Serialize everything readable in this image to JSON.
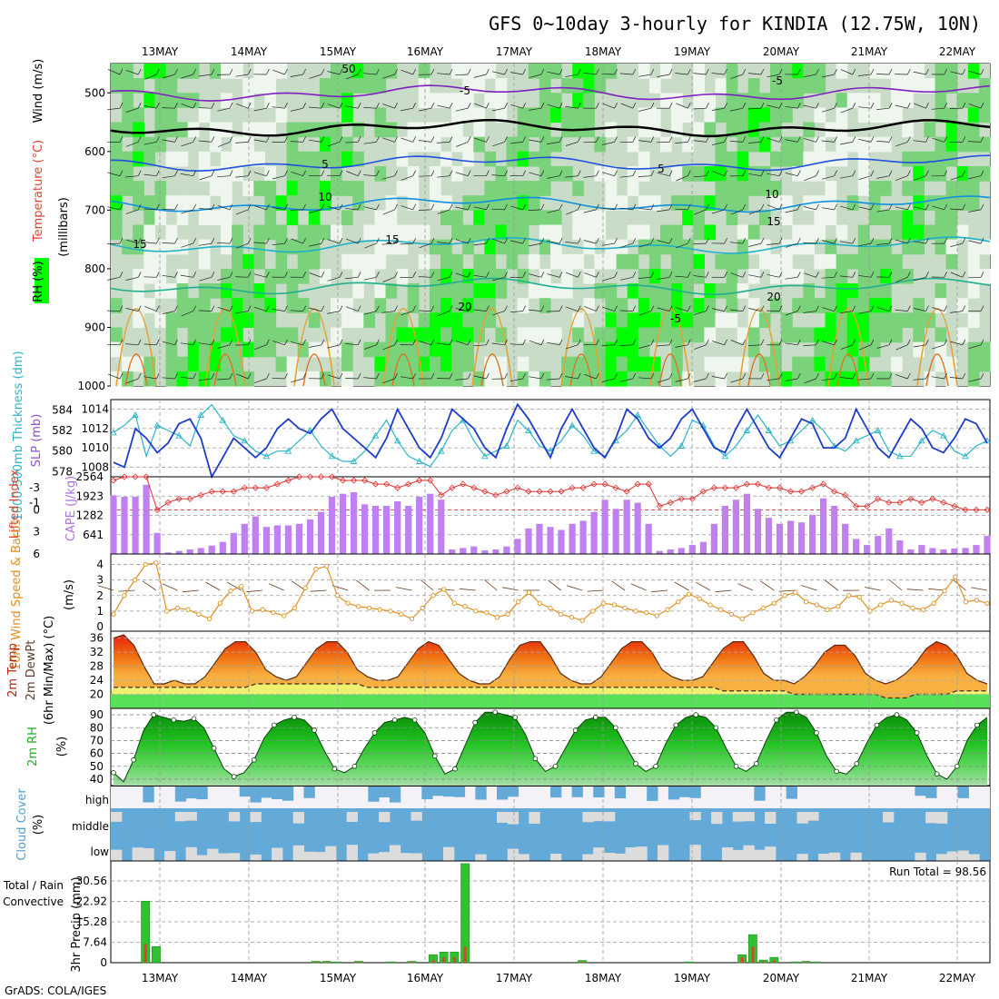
{
  "title": "GFS 0~10day 3-hourly for KINDIA (12.75W, 10N)",
  "footer": "GrADS: COLA/IGES",
  "run_total_label": "Run Total = 98.56",
  "colors": {
    "rh_green": "#00ff00",
    "rh_mid": "#7ad27a",
    "rh_light": "#c8dcc8",
    "rh_pale": "#eef6ee",
    "slp": "#1e3cc8",
    "thickness": "#2ab4c8",
    "cape": "#c080f0",
    "lifted": "#e03030",
    "wind10": "#e09020",
    "temp_red": "#e82010",
    "temp_orange": "#f07010",
    "temp_amber": "#f8b040",
    "dew_yellow": "#f0f070",
    "dew_green": "#58e058",
    "cloud": "#64aad8",
    "cloud_bg": "#dcdcdc",
    "precip_total": "#30c030",
    "precip_conv": "#e04030"
  },
  "chart_data": [
    {
      "type": "heatmap",
      "panel": "upper-air",
      "ylabel_parts": [
        "RH (%)",
        "Temperature (°C)",
        "Wind (m/s)"
      ],
      "ylabel2": "(millibars)",
      "x_categories": [
        "13MAY",
        "14MAY",
        "15MAY",
        "16MAY",
        "17MAY",
        "18MAY",
        "19MAY",
        "20MAY",
        "21MAY",
        "22MAY"
      ],
      "yticks": [
        "500",
        "600",
        "700",
        "800",
        "900",
        "1000"
      ],
      "ylim": [
        1000,
        450
      ],
      "contour_labels": [
        "-5",
        "-5",
        "5",
        "5",
        "10",
        "10",
        "15",
        "15",
        "20",
        "20",
        "50",
        "15",
        "-5"
      ],
      "isotherms": [
        {
          "name": "-5",
          "level": 500
        },
        {
          "name": "0",
          "level": 560
        },
        {
          "name": "5",
          "level": 620
        },
        {
          "name": "10",
          "level": 690
        },
        {
          "name": "15",
          "level": 760
        },
        {
          "name": "20",
          "level": 830
        }
      ]
    },
    {
      "type": "line",
      "panel": "slp-thickness",
      "ylabel": "SLP (mb)",
      "ylabel2": "1000-500mb Thickness (dm)",
      "yticks_left": [
        "584",
        "582",
        "580",
        "578"
      ],
      "yticks_right": [
        "1014",
        "1012",
        "1010",
        "1008"
      ],
      "series": [
        {
          "name": "SLP",
          "values": [
            1008.5,
            1008,
            1012,
            1011,
            1009.5,
            1010.5,
            1012.5,
            1013,
            1011,
            1007,
            1009,
            1011,
            1010,
            1009,
            1010,
            1012,
            1013,
            1012,
            1011.5,
            1013,
            1014,
            1012,
            1011,
            1010,
            1009,
            1011,
            1014,
            1012,
            1010,
            1009,
            1011,
            1014,
            1013,
            1012,
            1010,
            1009,
            1012,
            1014.5,
            1013,
            1011,
            1009,
            1012,
            1014,
            1012,
            1010,
            1009,
            1011,
            1014,
            1013,
            1011,
            1010,
            1011,
            1013,
            1014,
            1012,
            1010,
            1009.5,
            1012,
            1014,
            1012,
            1010,
            1009,
            1011,
            1013,
            1012.5,
            1010,
            1010,
            1011,
            1014,
            1012,
            1010,
            1009,
            1011,
            1013,
            1012,
            1010,
            1009.5,
            1011,
            1013,
            1012.5,
            1010.5
          ]
        },
        {
          "name": "Thickness",
          "values": [
            581.8,
            582.5,
            583.5,
            579.5,
            582.5,
            582,
            581.5,
            580.5,
            583.5,
            584.5,
            583,
            581.5,
            581,
            580,
            579.5,
            580,
            580,
            581,
            582,
            580.5,
            579.5,
            579,
            579,
            580,
            581.5,
            583,
            581,
            579.5,
            579,
            578.5,
            580,
            582,
            583,
            581,
            579.5,
            580,
            580.5,
            583,
            582,
            580.5,
            580,
            581,
            582.5,
            581.5,
            580,
            579.5,
            581,
            582,
            583.5,
            582,
            580.5,
            579.5,
            580.5,
            583,
            582.5,
            580.5,
            579.5,
            580.5,
            582,
            583.5,
            582,
            580.5,
            581,
            582,
            583,
            582,
            580.5,
            580,
            581,
            581.5,
            582,
            580,
            579.5,
            579.5,
            581,
            582,
            581.5,
            580,
            579.5,
            580.5,
            581
          ]
        }
      ]
    },
    {
      "type": "bar",
      "panel": "cape-lifted-index",
      "ylabel": "CAPE (J/kg)",
      "ylabel2": "Lifted Index",
      "yticks_left": [
        "-3",
        "-1",
        "0",
        "3",
        "6"
      ],
      "yticks_right": [
        "2564",
        "1923",
        "1282",
        "641"
      ],
      "series": [
        {
          "name": "CAPE",
          "values": [
            1950,
            1900,
            1900,
            2300,
            700,
            50,
            100,
            150,
            200,
            280,
            400,
            700,
            1000,
            1250,
            900,
            950,
            950,
            1000,
            1150,
            1400,
            1900,
            2000,
            2050,
            1650,
            1600,
            1600,
            1750,
            1600,
            1900,
            2000,
            1800,
            150,
            200,
            250,
            120,
            150,
            250,
            500,
            850,
            1000,
            900,
            800,
            1000,
            1100,
            1400,
            1800,
            1500,
            1800,
            1700,
            1000,
            100,
            150,
            200,
            300,
            400,
            1000,
            1600,
            1800,
            2000,
            1500,
            1200,
            1000,
            1100,
            1050,
            1300,
            1850,
            1600,
            1000,
            500,
            300,
            600,
            850,
            450,
            150,
            300,
            200,
            150,
            180,
            200,
            300,
            600
          ]
        },
        {
          "name": "Lifted Index",
          "values": [
            -4,
            -4.5,
            -4.5,
            -4.5,
            0,
            -1,
            -1.5,
            -1.5,
            -2,
            -2.5,
            -2.5,
            -2.5,
            -3,
            -3,
            -3,
            -3.5,
            -4,
            -4.5,
            -4.5,
            -4.5,
            -4.5,
            -4,
            -4,
            -4,
            -3.5,
            -3.5,
            -3,
            -3.5,
            -4,
            -4,
            -2,
            -3,
            -3.5,
            -3,
            -2.5,
            -2,
            -2.5,
            -3,
            -2.5,
            -2.5,
            -2.5,
            -2.5,
            -3,
            -3,
            -3.5,
            -3.5,
            -3,
            -2.5,
            -3.5,
            -3.5,
            -0.5,
            -1,
            -1.5,
            -1.5,
            -2.5,
            -3,
            -3,
            -3,
            -3.5,
            -3.5,
            -3,
            -3,
            -2.5,
            -2.5,
            -3,
            -3.5,
            -2.5,
            -2,
            -0.5,
            -0.5,
            -1.5,
            -1,
            -1,
            -1.5,
            -1,
            -1.5,
            -1,
            -0.5,
            0,
            0,
            0
          ]
        }
      ]
    },
    {
      "type": "line",
      "panel": "10m-wind",
      "ylabel": "10m Wind Speed & Barbs",
      "ylabel2": "(m/s)",
      "yticks": [
        "4",
        "3",
        "2",
        "1",
        "0"
      ],
      "ylim": [
        0,
        4.5
      ],
      "series": [
        {
          "name": "10m Wind Speed",
          "values": [
            0.8,
            2,
            3,
            4,
            4.1,
            1,
            1.2,
            1.1,
            0.8,
            0.5,
            1.5,
            2.3,
            2.6,
            1,
            1.1,
            0.9,
            0.7,
            1.2,
            2.5,
            3.7,
            3.9,
            2,
            1.5,
            1.3,
            1.2,
            1.1,
            1,
            0.8,
            0.5,
            1.2,
            2,
            2.4,
            1.5,
            1.3,
            1,
            0.9,
            0.6,
            0.8,
            1.6,
            2.2,
            1.5,
            1.2,
            0.8,
            0.6,
            0.4,
            1,
            1.5,
            1.4,
            1.2,
            1,
            0.9,
            0.7,
            1.1,
            1.6,
            2.1,
            1.8,
            1.4,
            1.1,
            0.8,
            0.5,
            0.9,
            1.2,
            1.5,
            2,
            2.2,
            1.6,
            1.4,
            1.1,
            1.3,
            2,
            1.9,
            1,
            1.4,
            1.7,
            1.5,
            1.2,
            1.1,
            1.5,
            2.3,
            3.2,
            1.6,
            1.7,
            1.5
          ]
        }
      ]
    },
    {
      "type": "area",
      "panel": "2m-temp",
      "ylabel": "2m Temp",
      "ylabel2": "2m DewPt",
      "ylabel3": "(6hr Min/Max) (°C)",
      "yticks": [
        "36",
        "32",
        "28",
        "24",
        "20"
      ],
      "ylim": [
        16,
        38
      ],
      "series": [
        {
          "name": "2m Temp",
          "values": [
            36,
            37,
            34,
            28,
            23,
            23,
            24,
            23,
            23,
            25,
            29,
            33,
            35,
            35,
            32,
            27,
            25,
            24,
            25,
            29,
            33,
            35,
            35,
            32,
            27,
            25,
            24,
            24,
            25,
            29,
            33,
            35,
            34,
            30,
            26,
            24,
            23,
            23,
            25,
            30,
            34,
            35,
            35,
            31,
            26,
            24,
            23,
            23,
            25,
            29,
            33,
            35,
            35,
            32,
            27,
            25,
            24,
            24,
            25,
            29,
            33,
            35,
            35,
            31,
            26,
            24,
            24,
            23,
            25,
            28,
            32,
            34,
            34,
            31,
            26,
            24,
            23,
            24,
            26,
            29,
            33,
            35,
            34,
            31,
            26,
            24,
            23
          ]
        },
        {
          "name": "2m DewPt",
          "values": [
            22,
            22,
            22,
            22,
            22,
            22,
            22,
            22,
            22,
            22,
            22,
            22,
            22,
            22,
            23,
            23,
            23,
            23,
            23,
            23,
            23,
            23,
            23,
            23,
            23,
            22,
            22,
            22,
            22,
            22,
            22,
            22,
            22,
            22,
            22,
            22,
            22,
            22,
            22,
            22,
            22,
            22,
            22,
            22,
            22,
            22,
            22,
            22,
            22,
            22,
            22,
            22,
            22,
            22,
            22,
            22,
            22,
            22,
            22,
            22,
            21,
            21,
            21,
            21,
            21,
            21,
            21,
            20,
            20,
            20,
            20,
            20,
            20,
            20,
            20,
            20,
            19,
            19,
            19,
            20,
            20,
            20,
            20,
            21,
            21,
            21,
            21
          ]
        }
      ]
    },
    {
      "type": "area",
      "panel": "2m-rh",
      "ylabel": "2m RH",
      "ylabel2": "(%)",
      "yticks": [
        "90",
        "80",
        "70",
        "60",
        "50",
        "40"
      ],
      "ylim": [
        35,
        95
      ],
      "series": [
        {
          "name": "2m RH",
          "values": [
            45,
            38,
            55,
            78,
            90,
            88,
            86,
            85,
            87,
            80,
            64,
            48,
            42,
            45,
            55,
            72,
            82,
            86,
            88,
            86,
            78,
            62,
            48,
            45,
            50,
            64,
            76,
            84,
            86,
            88,
            86,
            76,
            58,
            44,
            48,
            66,
            84,
            92,
            92,
            90,
            88,
            75,
            56,
            46,
            50,
            64,
            78,
            86,
            88,
            88,
            80,
            66,
            52,
            46,
            50,
            68,
            82,
            88,
            90,
            88,
            80,
            64,
            50,
            46,
            52,
            70,
            86,
            92,
            92,
            88,
            76,
            58,
            46,
            44,
            52,
            68,
            82,
            88,
            90,
            86,
            76,
            58,
            44,
            40,
            50,
            70,
            82,
            88
          ]
        }
      ]
    },
    {
      "type": "heatmap",
      "panel": "cloud-cover",
      "ylabel": "Cloud Cover",
      "ylabel2": "(%)",
      "ytick_labels": [
        "high",
        "middle",
        "low"
      ]
    },
    {
      "type": "bar",
      "panel": "precip",
      "ylabel": "3hr Precip (mm)",
      "ylabel2": "Total / Rain",
      "ylabel3": "Convective",
      "yticks": [
        "30.56",
        "22.92",
        "15.28",
        "7.64",
        "0"
      ],
      "ylim": [
        0,
        38
      ],
      "series": [
        {
          "name": "Total",
          "values": [
            0,
            0,
            0,
            23,
            6,
            0,
            0,
            0,
            0,
            0,
            0,
            0,
            0,
            0,
            0,
            0,
            0,
            0,
            0,
            0.5,
            0.5,
            0.3,
            0,
            0.5,
            0,
            0,
            0.3,
            0,
            0.5,
            0,
            3,
            4,
            4,
            37,
            0,
            0,
            0,
            0,
            0,
            0,
            0,
            0,
            0,
            0,
            0.8,
            0,
            0,
            0,
            0,
            0,
            0,
            0,
            0,
            0,
            0.3,
            0,
            0,
            0,
            0,
            3,
            10.5,
            1,
            2,
            0,
            0.3,
            0.5,
            0.3,
            0,
            0,
            0,
            0,
            0,
            0,
            0,
            0,
            0,
            0,
            0,
            0,
            0,
            0,
            0,
            0
          ]
        },
        {
          "name": "Convective",
          "values": [
            0,
            0,
            0,
            7,
            0,
            0,
            0,
            0,
            0,
            0,
            0,
            0,
            0,
            0,
            0,
            0,
            0,
            0,
            0,
            0.3,
            0.3,
            0,
            0,
            0.3,
            0,
            0,
            0,
            0,
            0.3,
            0,
            1,
            2,
            2,
            6,
            0,
            0,
            0,
            0,
            0,
            0,
            0,
            0,
            0,
            0,
            0.3,
            0,
            0,
            0,
            0,
            0,
            0,
            0,
            0,
            0,
            0,
            0,
            0,
            0,
            0,
            2,
            6,
            0.5,
            1,
            0,
            0,
            0.3,
            0,
            0,
            0,
            0,
            0,
            0,
            0,
            0,
            0,
            0,
            0,
            0,
            0,
            0,
            0,
            0,
            0
          ]
        }
      ]
    }
  ]
}
